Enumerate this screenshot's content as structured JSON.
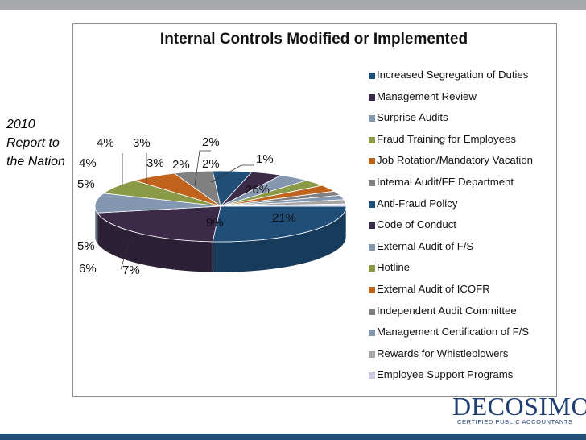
{
  "slide": {
    "side_text_line1": "2010",
    "side_text_line2": "Report to",
    "side_text_line3": "the Nation"
  },
  "chart_data": {
    "type": "pie",
    "title": "Internal Controls Modified or Implemented",
    "legend_position": "right",
    "categories": [
      "Increased Segregation of Duties",
      "Management Review",
      "Surprise Audits",
      "Fraud Training for Employees",
      "Job Rotation/Mandatory Vacation",
      "Internal Audit/FE Department",
      "Anti-Fraud Policy",
      "Code of Conduct",
      "External Audit of F/S",
      "Hotline",
      "External Audit of ICOFR",
      "Independent Audit Committee",
      "Management Certification of F/S",
      "Rewards for Whistleblowers",
      "Employee Support Programs"
    ],
    "values": [
      26,
      21,
      9,
      7,
      6,
      5,
      5,
      4,
      4,
      3,
      3,
      2,
      2,
      2,
      1
    ],
    "labels": [
      "26%",
      "21%",
      "9%",
      "7%",
      "6%",
      "5%",
      "5%",
      "4%",
      "4%",
      "3%",
      "3%",
      "2%",
      "2%",
      "2%",
      "1%"
    ],
    "colors": [
      "#1f4e79",
      "#3b2a48",
      "#8497b0",
      "#8b9a46",
      "#c0631c",
      "#808080",
      "#1f4e79",
      "#3b2a48",
      "#8497b0",
      "#8b9a46",
      "#c0631c",
      "#808080",
      "#8497b0",
      "#a6a6a6",
      "#c9cde3"
    ]
  },
  "brand": {
    "name": "DECOSIMO",
    "tagline": "CERTIFIED PUBLIC ACCOUNTANTS"
  }
}
